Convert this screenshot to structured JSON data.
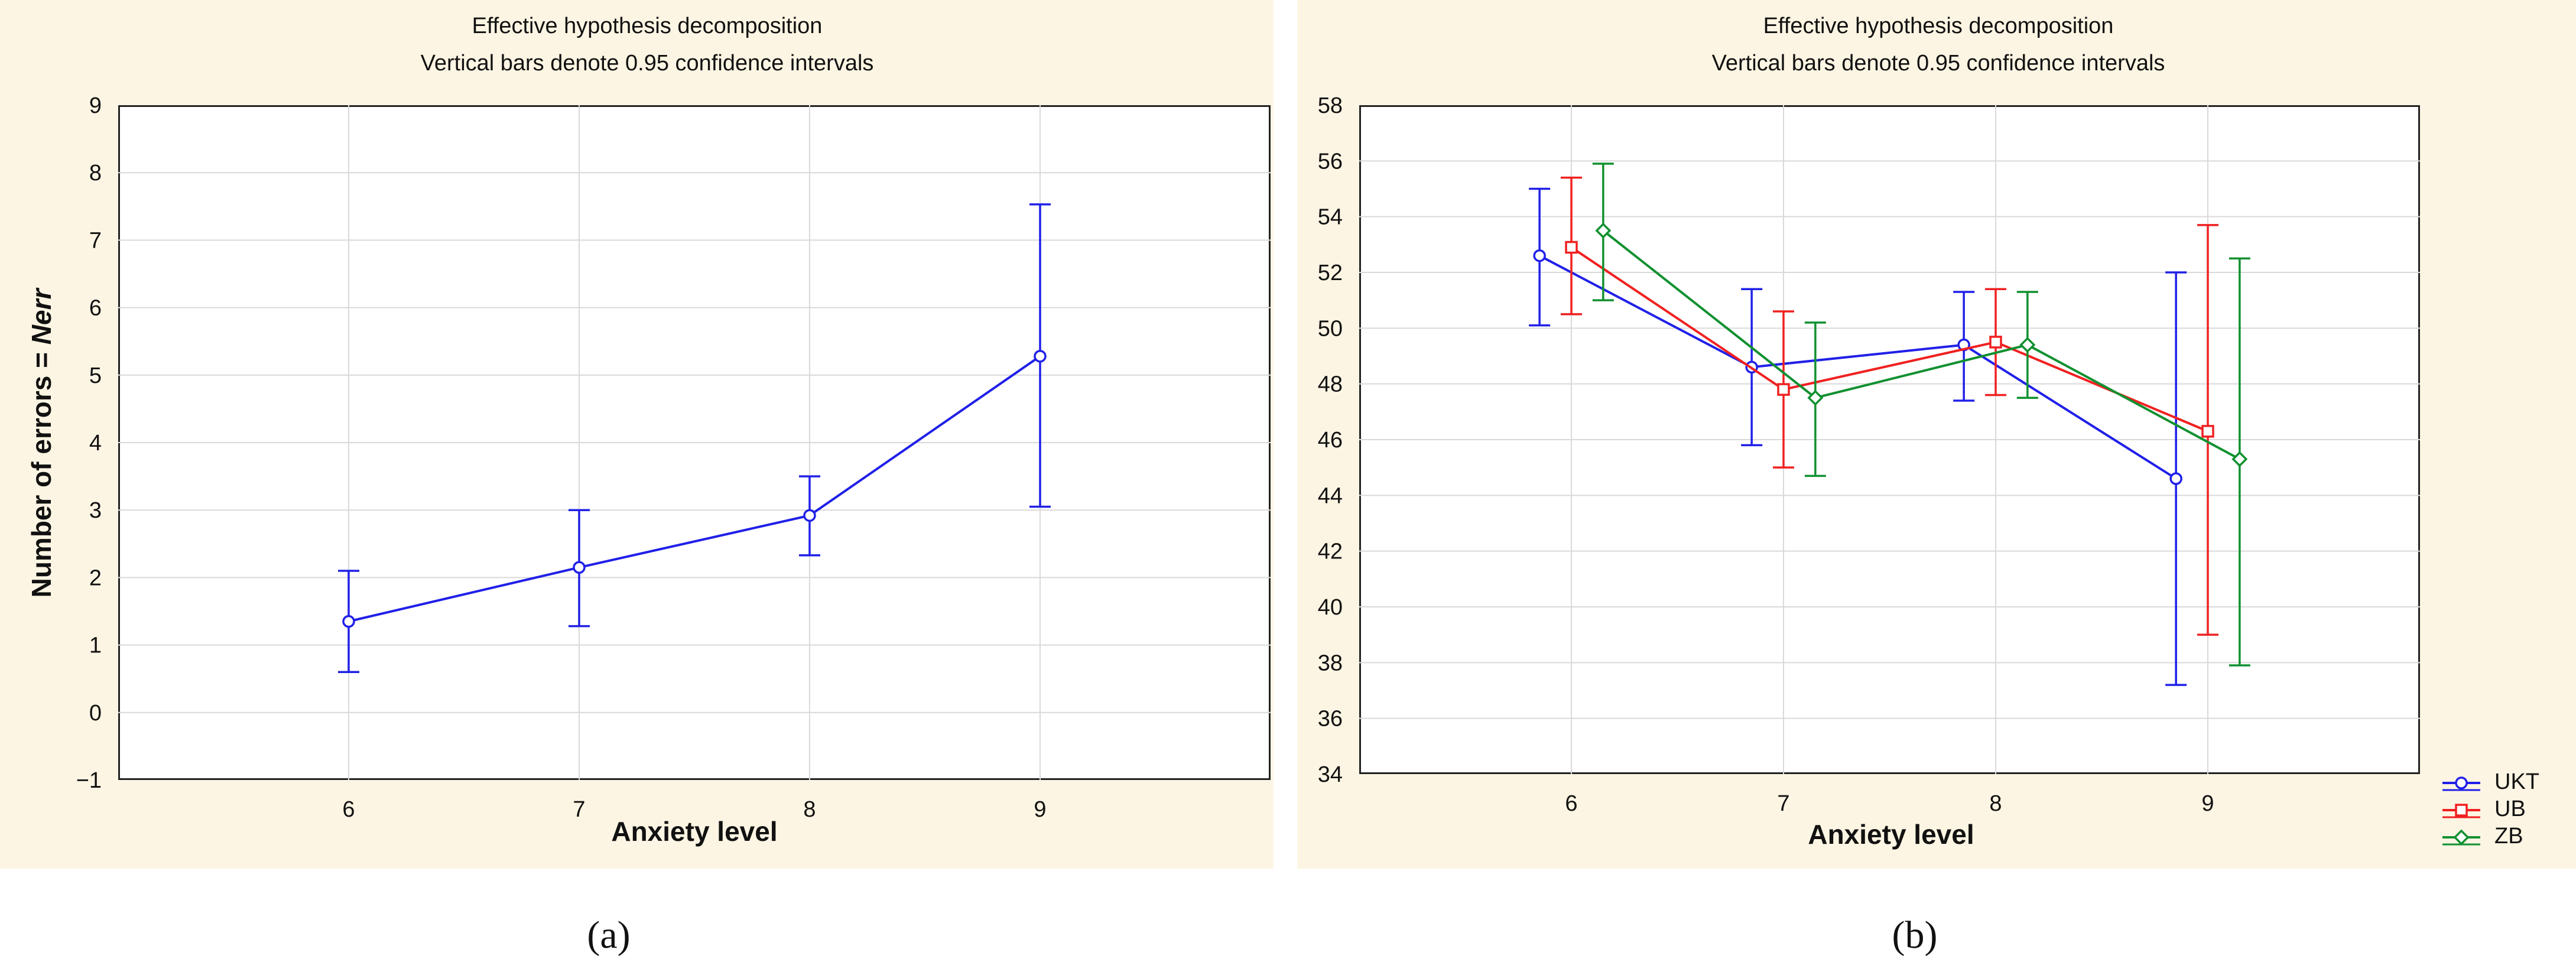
{
  "panels": [
    {
      "title_line1": "Effective hypothesis decomposition",
      "title_line2": "Vertical bars denote 0.95 confidence intervals",
      "xlabel": "Anxiety level",
      "ylabel_prefix": "Number of errors = ",
      "ylabel_italic": "Nerr",
      "caption": "(a)"
    },
    {
      "title_line1": "Effective hypothesis decomposition",
      "title_line2": "Vertical bars denote 0.95 confidence intervals",
      "xlabel": "Anxiety level",
      "caption": "(b)"
    }
  ],
  "chart_data": [
    {
      "type": "line",
      "title": "Effective hypothesis decomposition\nVertical bars denote 0.95 confidence intervals",
      "xlabel": "Anxiety level",
      "ylabel": "Number of errors = Nerr",
      "x": [
        6,
        7,
        8,
        9
      ],
      "xlim": [
        5,
        10
      ],
      "ylim": [
        -1,
        9
      ],
      "yticks": [
        -1,
        0,
        1,
        2,
        3,
        4,
        5,
        6,
        7,
        8,
        9
      ],
      "grid": true,
      "series": [
        {
          "color": "#2020e8",
          "marker": "circle",
          "values": [
            1.35,
            2.15,
            2.92,
            5.28
          ],
          "ci_low": [
            0.6,
            1.28,
            2.33,
            3.05
          ],
          "ci_high": [
            2.1,
            3.0,
            3.5,
            7.53
          ]
        }
      ]
    },
    {
      "type": "line",
      "title": "Effective hypothesis decomposition\nVertical bars denote 0.95 confidence intervals",
      "xlabel": "Anxiety level",
      "x": [
        6,
        7,
        8,
        9
      ],
      "xlim": [
        5,
        10
      ],
      "ylim": [
        34,
        58
      ],
      "yticks": [
        34,
        36,
        38,
        40,
        42,
        44,
        46,
        48,
        50,
        52,
        54,
        56,
        58
      ],
      "grid": true,
      "legend_position": "outside bottom-right",
      "series": [
        {
          "name": "UKT",
          "color": "#2020e8",
          "marker": "circle",
          "offset": -0.15,
          "values": [
            52.6,
            48.6,
            49.4,
            44.6
          ],
          "ci_low": [
            50.1,
            45.8,
            47.4,
            37.2
          ],
          "ci_high": [
            55.0,
            51.4,
            51.3,
            52.0
          ]
        },
        {
          "name": "UB",
          "color": "#f02020",
          "marker": "square",
          "offset": 0,
          "values": [
            52.9,
            47.8,
            49.5,
            46.3
          ],
          "ci_low": [
            50.5,
            45.0,
            47.6,
            39.0
          ],
          "ci_high": [
            55.4,
            50.6,
            51.4,
            53.7
          ]
        },
        {
          "name": "ZB",
          "color": "#109030",
          "marker": "diamond",
          "offset": 0.15,
          "values": [
            53.5,
            47.5,
            49.4,
            45.3
          ],
          "ci_low": [
            51.0,
            44.7,
            47.5,
            37.9
          ],
          "ci_high": [
            55.9,
            50.2,
            51.3,
            52.5
          ]
        }
      ]
    }
  ]
}
